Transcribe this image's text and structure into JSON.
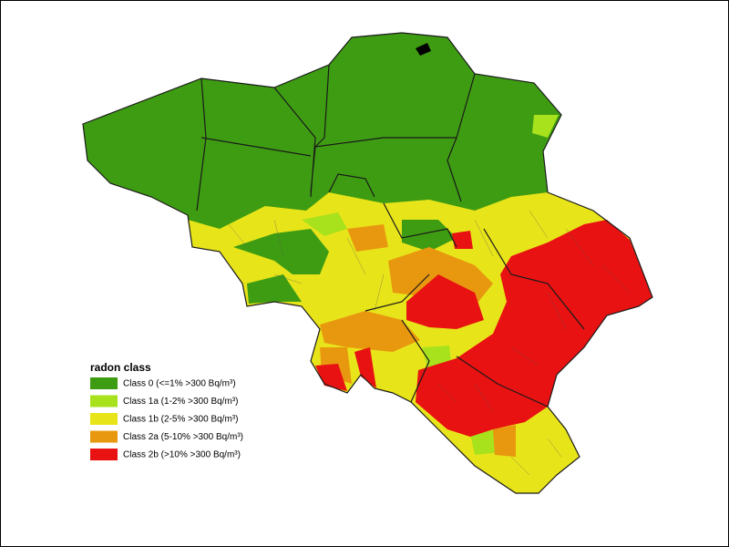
{
  "legend": {
    "title": "radon class",
    "items": [
      {
        "label": "Class 0 (<=1% >300 Bq/m³)",
        "color": "#3e9c12"
      },
      {
        "label": "Class 1a (1-2% >300 Bq/m³)",
        "color": "#a8e21c"
      },
      {
        "label": "Class 1b (2-5% >300 Bq/m³)",
        "color": "#e8e41a"
      },
      {
        "label": "Class 2a (5-10% >300 Bq/m³)",
        "color": "#e8980e"
      },
      {
        "label": "Class 2b (>10% >300 Bq/m³)",
        "color": "#e81212"
      }
    ]
  }
}
